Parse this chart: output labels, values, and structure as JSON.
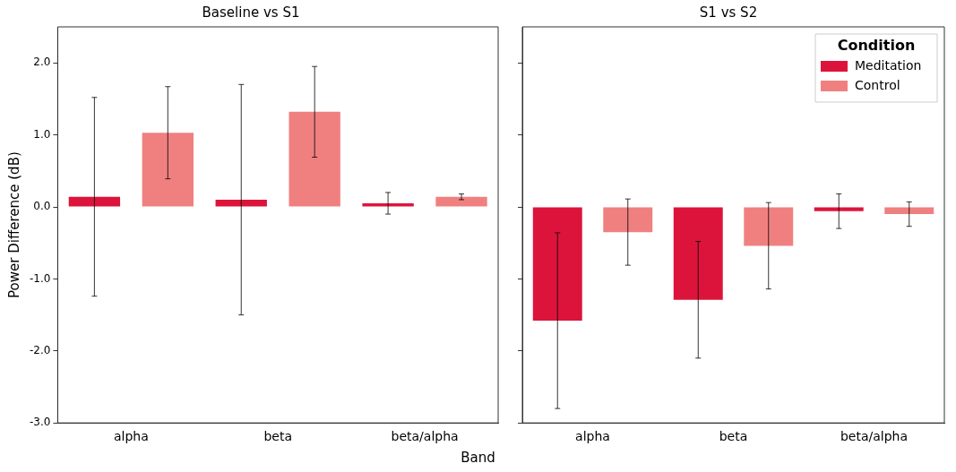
{
  "chart_data": [
    {
      "type": "bar",
      "title": "Baseline vs S1",
      "xlabel": "Band",
      "ylabel": "Power Difference (dB)",
      "categories": [
        "alpha",
        "beta",
        "beta/alpha"
      ],
      "series": [
        {
          "color": "#dc143c",
          "values": [
            0.14,
            0.1,
            0.05
          ],
          "errors": [
            1.38,
            1.6,
            0.15
          ]
        },
        {
          "color": "#f08080",
          "values": [
            1.03,
            1.32,
            0.14
          ],
          "errors": [
            0.64,
            0.63,
            0.04
          ]
        }
      ],
      "ylim": [
        -3.0,
        2.5
      ],
      "yticks": [
        {
          "value": 2,
          "label": "2.0"
        },
        {
          "value": 1,
          "label": "1.0"
        },
        {
          "value": 0,
          "label": "0.0"
        },
        {
          "value": -1,
          "label": "-1.0"
        },
        {
          "value": -2,
          "label": "-2.0"
        },
        {
          "value": -3,
          "label": "-3.0"
        }
      ],
      "grid": false,
      "legend": false
    },
    {
      "type": "bar",
      "title": "S1 vs S2",
      "categories": [
        "alpha",
        "beta",
        "beta/alpha"
      ],
      "series": [
        {
          "name": "Meditation",
          "color": "#dc143c",
          "values": [
            -1.58,
            -1.29,
            -0.06
          ],
          "errors": [
            1.22,
            0.81,
            0.24
          ]
        },
        {
          "name": "Control",
          "color": "#f08080",
          "values": [
            -0.35,
            -0.54,
            -0.1
          ],
          "errors": [
            0.46,
            0.6,
            0.17
          ]
        }
      ],
      "ylim": [
        -3.0,
        2.5
      ],
      "yticks": [
        {
          "value": 2,
          "label": null
        },
        {
          "value": 1,
          "label": null
        },
        {
          "value": 0,
          "label": null
        },
        {
          "value": -1,
          "label": null
        },
        {
          "value": -2,
          "label": null
        },
        {
          "value": -3,
          "label": null
        }
      ],
      "tick_labels": "x",
      "grid": false,
      "legend": "top right",
      "legend_title": "Condition"
    }
  ]
}
